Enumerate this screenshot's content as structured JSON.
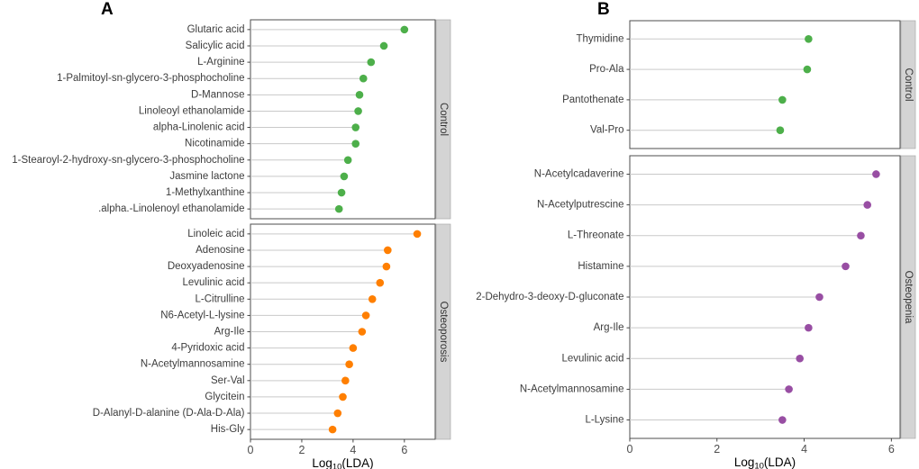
{
  "figure_title": "",
  "colors": {
    "control_green": "#4daf4a",
    "osteoporosis_orange": "#ff7f00",
    "osteopenia_purple": "#984ea3",
    "strip_fill": "#d4d4d4",
    "strip_border": "#aaaaaa",
    "panel_border": "#4d4d4d",
    "stem": "#c9c9c9",
    "axis_text": "#4d4d4d",
    "label_text": "#3d3d3d",
    "tick_mark": "#333333"
  },
  "chart_data": [
    {
      "type": "scatter",
      "subtype": "lollipop",
      "panel_label": "A",
      "xlabel": "Log10(LDA)",
      "xlabel_parts": [
        "Log",
        "10",
        "(LDA)"
      ],
      "xticks": [
        0,
        2,
        4,
        6
      ],
      "xlim": [
        0,
        7.2
      ],
      "grid": false,
      "legend": "none",
      "facets": [
        {
          "name": "Control",
          "color": "#4daf4a",
          "items": [
            {
              "label": "Glutaric acid",
              "value": 6.0
            },
            {
              "label": "Salicylic acid",
              "value": 5.2
            },
            {
              "label": "L-Arginine",
              "value": 4.7
            },
            {
              "label": "1-Palmitoyl-sn-glycero-3-phosphocholine",
              "value": 4.4
            },
            {
              "label": "D-Mannose",
              "value": 4.25
            },
            {
              "label": "Linoleoyl ethanolamide",
              "value": 4.2
            },
            {
              "label": "alpha-Linolenic acid",
              "value": 4.1
            },
            {
              "label": "Nicotinamide",
              "value": 4.1
            },
            {
              "label": "1-Stearoyl-2-hydroxy-sn-glycero-3-phosphocholine",
              "value": 3.8
            },
            {
              "label": "Jasmine lactone",
              "value": 3.65
            },
            {
              "label": "1-Methylxanthine",
              "value": 3.55
            },
            {
              "label": ".alpha.-Linolenoyl ethanolamide",
              "value": 3.45
            }
          ]
        },
        {
          "name": "Osteoporosis",
          "color": "#ff7f00",
          "items": [
            {
              "label": "Linoleic acid",
              "value": 6.5
            },
            {
              "label": "Adenosine",
              "value": 5.35
            },
            {
              "label": "Deoxyadenosine",
              "value": 5.3
            },
            {
              "label": "Levulinic acid",
              "value": 5.05
            },
            {
              "label": "L-Citrulline",
              "value": 4.75
            },
            {
              "label": "N6-Acetyl-L-lysine",
              "value": 4.5
            },
            {
              "label": "Arg-Ile",
              "value": 4.35
            },
            {
              "label": "4-Pyridoxic acid",
              "value": 4.0
            },
            {
              "label": "N-Acetylmannosamine",
              "value": 3.85
            },
            {
              "label": "Ser-Val",
              "value": 3.7
            },
            {
              "label": "Glycitein",
              "value": 3.6
            },
            {
              "label": "D-Alanyl-D-alanine (D-Ala-D-Ala)",
              "value": 3.4
            },
            {
              "label": "His-Gly",
              "value": 3.2
            }
          ]
        }
      ]
    },
    {
      "type": "scatter",
      "subtype": "lollipop",
      "panel_label": "B",
      "xlabel": "Log10(LDA)",
      "xlabel_parts": [
        "Log",
        "10",
        "(LDA)"
      ],
      "xticks": [
        0,
        2,
        4,
        6
      ],
      "xlim": [
        0,
        6.2
      ],
      "grid": false,
      "legend": "none",
      "facets": [
        {
          "name": "Control",
          "color": "#4daf4a",
          "items": [
            {
              "label": "Thymidine",
              "value": 4.1
            },
            {
              "label": "Pro-Ala",
              "value": 4.07
            },
            {
              "label": "Pantothenate",
              "value": 3.5
            },
            {
              "label": "Val-Pro",
              "value": 3.45
            }
          ]
        },
        {
          "name": "Osteopenia",
          "color": "#984ea3",
          "items": [
            {
              "label": "N-Acetylcadaverine",
              "value": 5.65
            },
            {
              "label": "N-Acetylputrescine",
              "value": 5.45
            },
            {
              "label": "L-Threonate",
              "value": 5.3
            },
            {
              "label": "Histamine",
              "value": 4.95
            },
            {
              "label": "2-Dehydro-3-deoxy-D-gluconate",
              "value": 4.35
            },
            {
              "label": "Arg-Ile",
              "value": 4.1
            },
            {
              "label": "Levulinic acid",
              "value": 3.9
            },
            {
              "label": "N-Acetylmannosamine",
              "value": 3.65
            },
            {
              "label": "L-Lysine",
              "value": 3.5
            }
          ]
        }
      ]
    }
  ]
}
